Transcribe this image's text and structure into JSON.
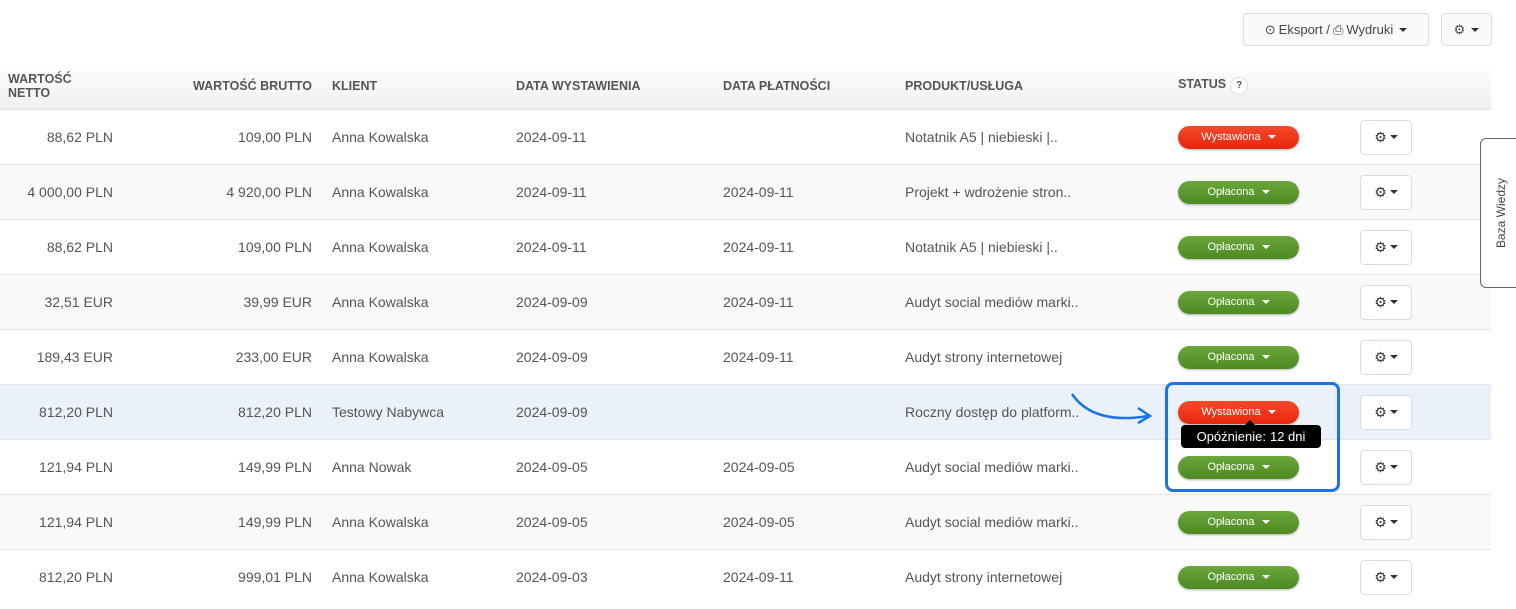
{
  "toolbar": {
    "export_label": "Eksport / ",
    "print_label": "Wydruki"
  },
  "columns": [
    "WARTOŚĆ NETTO",
    "WARTOŚĆ BRUTTO",
    "KLIENT",
    "DATA WYSTAWIENIA",
    "DATA PŁATNOŚCI",
    "PRODUKT/USŁUGA",
    "STATUS"
  ],
  "status_help": "?",
  "rows": [
    {
      "netto": "88,62 PLN",
      "brutto": "109,00 PLN",
      "klient": "Anna Kowalska",
      "wyst": "2024-09-11",
      "plat": "",
      "produkt": "Notatnik A5 | niebieski |..",
      "status": "Wystawiona",
      "color": "red"
    },
    {
      "netto": "4 000,00 PLN",
      "brutto": "4 920,00 PLN",
      "klient": "Anna Kowalska",
      "wyst": "2024-09-11",
      "plat": "2024-09-11",
      "produkt": "Projekt + wdrożenie stron..",
      "status": "Opłacona",
      "color": "green"
    },
    {
      "netto": "88,62 PLN",
      "brutto": "109,00 PLN",
      "klient": "Anna Kowalska",
      "wyst": "2024-09-11",
      "plat": "2024-09-11",
      "produkt": "Notatnik A5 | niebieski |..",
      "status": "Opłacona",
      "color": "green"
    },
    {
      "netto": "32,51 EUR",
      "brutto": "39,99 EUR",
      "klient": "Anna Kowalska",
      "wyst": "2024-09-09",
      "plat": "2024-09-11",
      "produkt": "Audyt social mediów marki..",
      "status": "Opłacona",
      "color": "green"
    },
    {
      "netto": "189,43 EUR",
      "brutto": "233,00 EUR",
      "klient": "Anna Kowalska",
      "wyst": "2024-09-09",
      "plat": "2024-09-11",
      "produkt": "Audyt strony internetowej",
      "status": "Opłacona",
      "color": "green"
    },
    {
      "netto": "812,20 PLN",
      "brutto": "812,20 PLN",
      "klient": "Testowy Nabywca",
      "wyst": "2024-09-09",
      "plat": "",
      "produkt": "Roczny dostęp do platform..",
      "status": "Wystawiona",
      "color": "red"
    },
    {
      "netto": "121,94 PLN",
      "brutto": "149,99 PLN",
      "klient": "Anna Nowak",
      "wyst": "2024-09-05",
      "plat": "2024-09-05",
      "produkt": "Audyt social mediów marki..",
      "status": "Opłacona",
      "color": "green"
    },
    {
      "netto": "121,94 PLN",
      "brutto": "149,99 PLN",
      "klient": "Anna Kowalska",
      "wyst": "2024-09-05",
      "plat": "2024-09-05",
      "produkt": "Audyt social mediów marki..",
      "status": "Opłacona",
      "color": "green"
    },
    {
      "netto": "812,20 PLN",
      "brutto": "999,01 PLN",
      "klient": "Anna Kowalska",
      "wyst": "2024-09-03",
      "plat": "2024-09-11",
      "produkt": "Audyt strony internetowej",
      "status": "Opłacona",
      "color": "green"
    }
  ],
  "tooltip": {
    "line1": "Opóźnienie:",
    "line2": "12 dni"
  },
  "side_tab": "Baza Wiedzy",
  "colors": {
    "red": "#e8260d",
    "green": "#4d8a23",
    "highlight": "#1a73e8"
  }
}
